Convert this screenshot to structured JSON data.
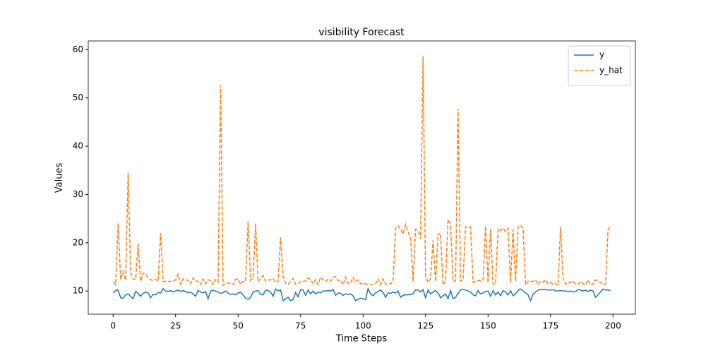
{
  "chart_data": {
    "type": "line",
    "title": "visibility Forecast",
    "x_label": "Time Steps",
    "y_label": "Values",
    "xlim": [
      -9.95,
      208.95
    ],
    "ylim": [
      5.2,
      61.8
    ],
    "xticks": [
      0,
      25,
      50,
      75,
      100,
      125,
      150,
      175,
      200
    ],
    "yticks": [
      10,
      20,
      30,
      40,
      50,
      60
    ],
    "legend": "upper right",
    "series": [
      {
        "name": "y",
        "color": "#1f77b4",
        "dash": "solid",
        "values": [
          9.6,
          10.1,
          10.2,
          8.6,
          8.5,
          9.2,
          9.4,
          8.9,
          8.4,
          9.9,
          9.5,
          8.9,
          9.5,
          9.8,
          9.6,
          8.6,
          9.3,
          9.2,
          9.7,
          9.6,
          10.5,
          10.0,
          9.9,
          10.1,
          9.8,
          10.0,
          10.2,
          9.9,
          10.1,
          9.9,
          9.6,
          9.8,
          9.4,
          8.9,
          10.1,
          9.8,
          9.6,
          9.9,
          8.4,
          10.0,
          10.1,
          10.0,
          9.8,
          9.5,
          9.7,
          10.0,
          9.6,
          9.3,
          9.4,
          9.2,
          9.6,
          9.7,
          9.2,
          8.5,
          8.3,
          8.6,
          9.8,
          10.0,
          10.1,
          9.3,
          9.2,
          10.2,
          10.1,
          9.8,
          8.9,
          10.4,
          10.0,
          10.2,
          8.0,
          8.4,
          8.7,
          8.0,
          8.2,
          9.7,
          8.8,
          10.3,
          10.2,
          9.1,
          10.2,
          9.4,
          10.0,
          9.4,
          9.8,
          9.6,
          10.0,
          10.0,
          10.1,
          10.0,
          10.3,
          9.1,
          9.6,
          9.5,
          9.1,
          9.4,
          9.3,
          9.4,
          9.0,
          8.0,
          8.3,
          8.5,
          8.4,
          8.2,
          10.5,
          9.4,
          9.0,
          9.6,
          9.9,
          10.2,
          9.7,
          8.7,
          9.6,
          9.5,
          9.8,
          9.6,
          10.0,
          8.7,
          9.1,
          9.2,
          9.2,
          9.3,
          9.4,
          10.2,
          10.2,
          9.8,
          10.3,
          8.6,
          10.2,
          9.4,
          9.8,
          10.1,
          9.6,
          8.6,
          9.0,
          9.4,
          8.4,
          10.1,
          8.4,
          8.7,
          9.5,
          10.2,
          10.3,
          10.2,
          10.0,
          9.8,
          9.2,
          9.0,
          10.1,
          9.4,
          9.6,
          9.9,
          10.0,
          8.9,
          10.1,
          9.2,
          9.8,
          9.0,
          10.1,
          9.8,
          9.2,
          10.1,
          9.0,
          9.4,
          10.1,
          10.4,
          10.0,
          9.6,
          9.2,
          8.0,
          9.3,
          9.8,
          10.2,
          10.3,
          10.3,
          10.3,
          10.2,
          10.2,
          10.3,
          10.0,
          10.0,
          10.1,
          10.0,
          10.0,
          9.9,
          10.0,
          9.8,
          9.9,
          10.3,
          10.2,
          10.0,
          10.2,
          9.9,
          10.2,
          10.0,
          8.7,
          9.2,
          9.8,
          10.4,
          10.2,
          10.2,
          10.1
        ]
      },
      {
        "name": "y_hat",
        "color": "#ff7f0e",
        "dash": "dashed",
        "values": [
          11.9,
          11.3,
          24.0,
          12.5,
          14.1,
          12.2,
          34.5,
          13.8,
          12.5,
          12.4,
          19.8,
          12.0,
          13.7,
          13.5,
          12.8,
          12.3,
          12.2,
          12.4,
          12.0,
          22.0,
          12.0,
          12.0,
          12.0,
          12.0,
          12.0,
          12.3,
          13.5,
          11.4,
          12.5,
          12.3,
          12.2,
          11.5,
          12.7,
          12.1,
          12.0,
          11.3,
          12.5,
          11.5,
          12.3,
          12.2,
          11.3,
          12.4,
          11.9,
          52.6,
          11.2,
          11.6,
          11.7,
          11.5,
          11.3,
          12.4,
          12.5,
          11.4,
          12.0,
          12.0,
          24.4,
          12.2,
          12.7,
          24.0,
          12.0,
          12.5,
          13.2,
          12.0,
          12.3,
          12.3,
          12.6,
          11.8,
          12.0,
          21.1,
          13.0,
          11.6,
          11.4,
          11.9,
          12.6,
          11.4,
          11.5,
          12.0,
          12.0,
          12.1,
          12.7,
          12.4,
          11.5,
          12.4,
          11.3,
          12.8,
          12.3,
          12.0,
          12.4,
          12.0,
          12.8,
          13.0,
          12.1,
          12.2,
          11.3,
          12.9,
          11.5,
          11.7,
          12.8,
          11.9,
          12.3,
          11.5,
          11.6,
          11.5,
          11.3,
          11.3,
          11.3,
          11.5,
          12.5,
          11.3,
          12.5,
          11.4,
          11.4,
          11.5,
          12.0,
          23.0,
          23.5,
          22.8,
          21.8,
          23.8,
          22.3,
          21.0,
          12.0,
          22.8,
          22.5,
          20.8,
          58.6,
          13.0,
          11.8,
          12.5,
          20.5,
          12.0,
          21.8,
          21.9,
          11.3,
          12.0,
          24.8,
          23.8,
          12.0,
          12.1,
          47.8,
          12.0,
          12.4,
          23.3,
          23.2,
          23.3,
          11.8,
          12.0,
          12.2,
          12.1,
          12.2,
          23.4,
          11.7,
          22.8,
          11.5,
          11.4,
          22.8,
          22.5,
          23.0,
          22.3,
          23.0,
          11.8,
          22.7,
          12.0,
          23.2,
          23.6,
          23.0,
          11.3,
          12.0,
          12.0,
          12.0,
          12.3,
          11.3,
          12.0,
          11.8,
          12.3,
          11.5,
          11.8,
          11.4,
          11.5,
          11.2,
          23.2,
          12.6,
          11.4,
          11.7,
          11.8,
          12.1,
          11.4,
          11.4,
          12.0,
          11.5,
          11.3,
          12.3,
          11.2,
          11.4,
          12.3,
          12.0,
          11.8,
          11.3,
          11.4,
          22.7,
          23.5
        ]
      }
    ]
  }
}
